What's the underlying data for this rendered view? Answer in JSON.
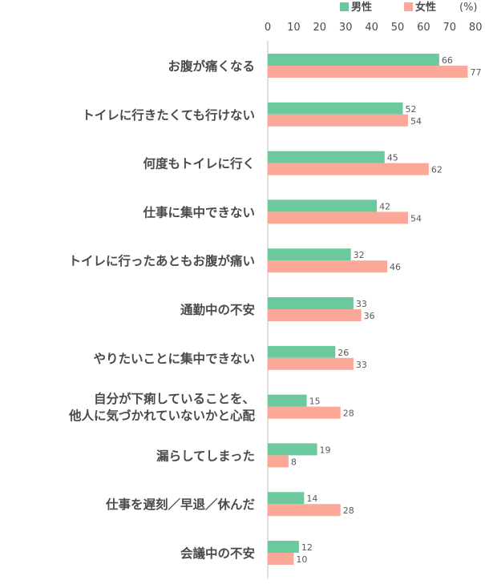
{
  "chart_data": {
    "type": "bar",
    "orientation": "horizontal",
    "unit": "(%)",
    "categories": [
      [
        "お腹が痛くなる"
      ],
      [
        "トイレに行きたくても行けない"
      ],
      [
        "何度もトイレに行く"
      ],
      [
        "仕事に集中できない"
      ],
      [
        "トイレに行ったあともお腹が痛い"
      ],
      [
        "通勤中の不安"
      ],
      [
        "やりたいことに集中できない"
      ],
      [
        "自分が下痢していることを、",
        "他人に気づかれていないかと心配"
      ],
      [
        "漏らしてしまった"
      ],
      [
        "仕事を遅刻／早退／休んだ"
      ],
      [
        "会議中の不安"
      ]
    ],
    "series": [
      {
        "name": "男性",
        "color": "#6cc99e",
        "values": [
          66,
          52,
          45,
          42,
          32,
          33,
          26,
          15,
          19,
          14,
          12
        ]
      },
      {
        "name": "女性",
        "color": "#fca898",
        "values": [
          77,
          54,
          62,
          54,
          46,
          36,
          33,
          28,
          8,
          28,
          10
        ]
      }
    ],
    "xlim": [
      0,
      80
    ],
    "xticks": [
      0,
      10,
      20,
      30,
      40,
      50,
      60,
      70,
      80
    ],
    "axis_position": "top",
    "legend_position": "top-right",
    "grid": false,
    "axis_color": "#bfbfbf"
  }
}
